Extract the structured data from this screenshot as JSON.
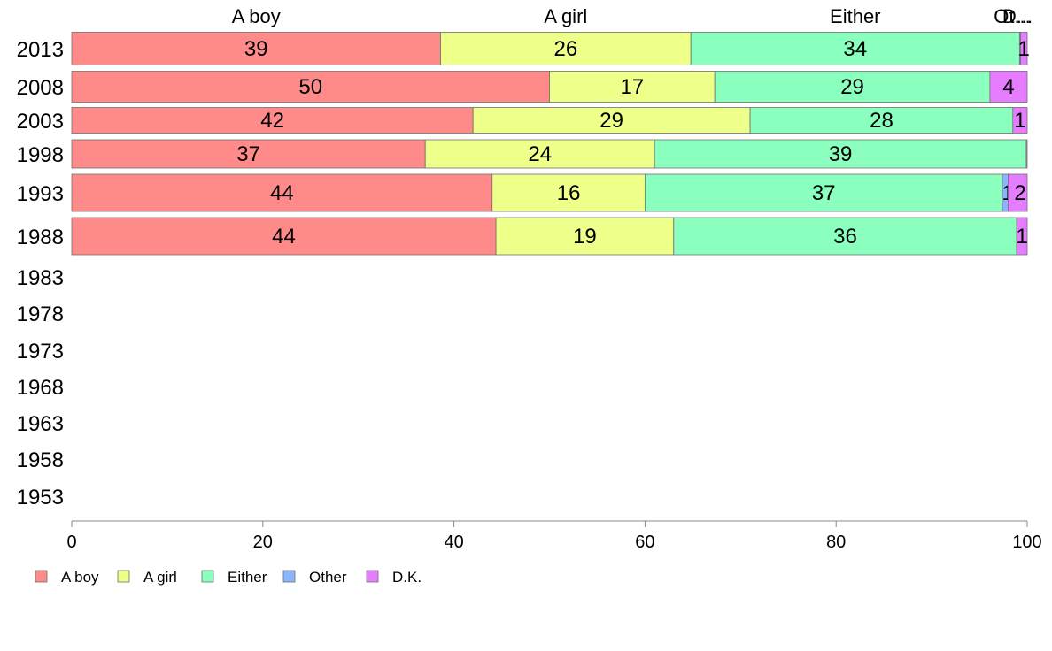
{
  "chart_data": {
    "type": "bar",
    "orientation": "horizontal",
    "stacked": true,
    "categories": [
      "1953",
      "1958",
      "1963",
      "1968",
      "1973",
      "1978",
      "1983",
      "1988",
      "1993",
      "1998",
      "2003",
      "2008",
      "2013"
    ],
    "xlim": [
      0,
      100
    ],
    "xticks": [
      0,
      20,
      40,
      60,
      80,
      100
    ],
    "grid": false,
    "legend_position": "bottom-left",
    "column_labels": [
      "A boy",
      "A girl",
      "Either",
      "Ot...",
      "D..."
    ],
    "series": [
      {
        "name": "A boy",
        "color": "#FF8A8A",
        "values": [
          null,
          null,
          null,
          null,
          null,
          null,
          null,
          44.4,
          44,
          37,
          42,
          50,
          38.6
        ]
      },
      {
        "name": "A girl",
        "color": "#EEFF8A",
        "values": [
          null,
          null,
          null,
          null,
          null,
          null,
          null,
          18.6,
          16,
          24,
          29,
          17.3,
          26.2
        ]
      },
      {
        "name": "Either",
        "color": "#8AFFBE",
        "values": [
          null,
          null,
          null,
          null,
          null,
          null,
          null,
          35.9,
          37.4,
          38.9,
          27.5,
          28.8,
          34.4
        ]
      },
      {
        "name": "Other",
        "color": "#8AB6FF",
        "values": [
          null,
          null,
          null,
          null,
          null,
          null,
          null,
          0,
          0.6,
          0,
          0,
          0,
          0.1
        ]
      },
      {
        "name": "D.K.",
        "color": "#E67CFF",
        "values": [
          null,
          null,
          null,
          null,
          null,
          null,
          null,
          1.1,
          2,
          0.1,
          1.5,
          3.9,
          0.7
        ]
      }
    ],
    "data_labels": {
      "1988": [
        "44",
        "19",
        "36",
        "",
        "1"
      ],
      "1993": [
        "44",
        "16",
        "37",
        "1",
        "2"
      ],
      "1998": [
        "37",
        "24",
        "39",
        "",
        ""
      ],
      "2003": [
        "42",
        "29",
        "28",
        "",
        "1"
      ],
      "2008": [
        "50",
        "17",
        "29",
        "",
        "4"
      ],
      "2013": [
        "39",
        "26",
        "34",
        "",
        "1"
      ]
    }
  }
}
